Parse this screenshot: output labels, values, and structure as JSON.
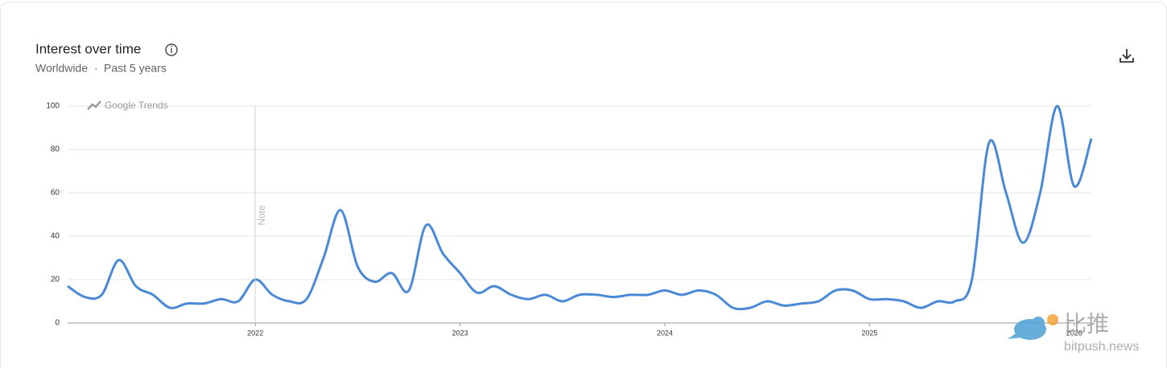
{
  "chart_data": {
    "type": "line",
    "title": "Interest over time",
    "region": "Worldwide",
    "period": "Past 5 years",
    "brand": "Google Trends",
    "note": "Note",
    "categories": [
      null,
      null,
      null,
      null,
      null,
      null,
      null,
      null,
      null,
      null,
      null,
      "2022",
      null,
      null,
      null,
      null,
      null,
      null,
      null,
      null,
      null,
      null,
      null,
      "2023",
      null,
      null,
      null,
      null,
      null,
      null,
      null,
      null,
      null,
      null,
      null,
      "2024",
      null,
      null,
      null,
      null,
      null,
      null,
      null,
      null,
      null,
      null,
      null,
      "2025",
      null,
      null,
      null,
      null,
      null,
      null,
      null,
      null,
      null,
      null,
      null,
      "2026",
      null
    ],
    "values": [
      17,
      12,
      13,
      29,
      17,
      13,
      7,
      9,
      9,
      11,
      10,
      20,
      13,
      10,
      11,
      30,
      52,
      26,
      19,
      23,
      15,
      45,
      32,
      23,
      14,
      17,
      13,
      11,
      13,
      10,
      13,
      13,
      12,
      13,
      13,
      15,
      13,
      15,
      13,
      7,
      7,
      10,
      8,
      9,
      10,
      15,
      15,
      11,
      11,
      10,
      7,
      10,
      10,
      20,
      83,
      60,
      37,
      60,
      100,
      63,
      85
    ],
    "color": "#4a89d6",
    "ylim": [
      0,
      100
    ],
    "yticks": [
      0,
      20,
      40,
      60,
      80,
      100
    ],
    "grid": true
  },
  "watermark": {
    "name": "比推",
    "site": "bitpush.news"
  }
}
